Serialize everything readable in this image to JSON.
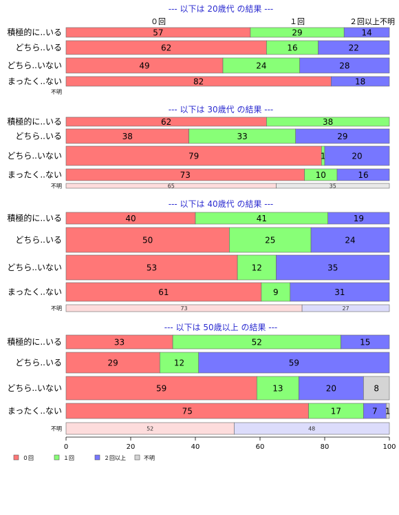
{
  "colors": {
    "c0": "#ff7777",
    "c1": "#88ff77",
    "c2": "#7777ff",
    "c3": "#d4d4d4",
    "c0_light": "#fddcdc",
    "c1_light": "#e3fbe0",
    "c2_light": "#dcdcfb",
    "c3_light": "#e8e8e8",
    "title": "#2b2bd0"
  },
  "chart_data": {
    "type": "bar",
    "orientation": "horizontal-stacked-100",
    "series": [
      {
        "name": "０回"
      },
      {
        "name": "１回"
      },
      {
        "name": "２回以上"
      },
      {
        "name": "不明"
      }
    ],
    "column_headers": [
      "０回",
      "１回",
      "２回以上",
      "不明"
    ],
    "xlim": [
      0,
      100
    ],
    "xticks": [
      0,
      20,
      40,
      60,
      80,
      100
    ],
    "legend_position": "bottom-left",
    "panels": [
      {
        "title": "--- 以下は 20歳代 の結果 ---",
        "rows": [
          {
            "label": "積極的に..いる",
            "values": [
              57,
              29,
              14,
              0
            ]
          },
          {
            "label": "どちら..いる",
            "values": [
              62,
              16,
              22,
              0
            ]
          },
          {
            "label": "どちら..いない",
            "values": [
              49,
              24,
              28,
              0
            ]
          },
          {
            "label": "まったく..ない",
            "values": [
              82,
              0,
              18,
              0
            ]
          },
          {
            "label": "不明",
            "values": [
              0,
              0,
              0,
              0
            ],
            "small": true
          }
        ]
      },
      {
        "title": "--- 以下は 30歳代 の結果 ---",
        "rows": [
          {
            "label": "積極的に..いる",
            "values": [
              62,
              38,
              0,
              0
            ]
          },
          {
            "label": "どちら..いる",
            "values": [
              38,
              33,
              29,
              0
            ]
          },
          {
            "label": "どちら..いない",
            "values": [
              79,
              1,
              20,
              0
            ]
          },
          {
            "label": "まったく..ない",
            "values": [
              73,
              10,
              16,
              0
            ]
          },
          {
            "label": "不明",
            "values": [
              65,
              0,
              0,
              35
            ],
            "small": true
          }
        ]
      },
      {
        "title": "--- 以下は 40歳代 の結果 ---",
        "rows": [
          {
            "label": "積極的に..いる",
            "values": [
              40,
              41,
              19,
              0
            ]
          },
          {
            "label": "どちら..いる",
            "values": [
              50,
              25,
              24,
              0
            ]
          },
          {
            "label": "どちら..いない",
            "values": [
              53,
              12,
              35,
              0
            ]
          },
          {
            "label": "まったく..ない",
            "values": [
              61,
              9,
              31,
              0
            ]
          },
          {
            "label": "不明",
            "values": [
              73,
              0,
              27,
              0
            ],
            "small": true
          }
        ]
      },
      {
        "title": "--- 以下は 50歳以上 の結果 ---",
        "rows": [
          {
            "label": "積極的に..いる",
            "values": [
              33,
              52,
              15,
              0
            ]
          },
          {
            "label": "どちら..いる",
            "values": [
              29,
              12,
              59,
              0
            ]
          },
          {
            "label": "どちら..いない",
            "values": [
              59,
              13,
              20,
              8
            ]
          },
          {
            "label": "まったく..ない",
            "values": [
              75,
              17,
              7,
              1
            ]
          },
          {
            "label": "不明",
            "values": [
              52,
              0,
              48,
              0
            ],
            "small": true
          }
        ]
      }
    ]
  }
}
